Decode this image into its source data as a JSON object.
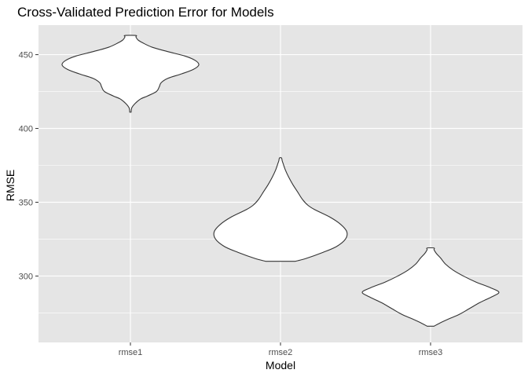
{
  "chart_data": {
    "type": "violin",
    "title": "Cross-Validated Prediction Error for Models",
    "xlabel": "Model",
    "ylabel": "RMSE",
    "categories": [
      "rmse1",
      "rmse2",
      "rmse3"
    ],
    "ylim": [
      255,
      470
    ],
    "yticks": [
      300,
      350,
      400,
      450
    ],
    "grid": true,
    "colors": {
      "panel": "#e5e5e5",
      "grid": "#ffffff",
      "violin_fill": "#ffffff",
      "violin_stroke": "#333333"
    },
    "violins": [
      {
        "category": "rmse1",
        "min": 411,
        "max": 463,
        "density": [
          [
            411,
            0.01
          ],
          [
            414,
            0.02
          ],
          [
            417,
            0.07
          ],
          [
            420,
            0.15
          ],
          [
            422,
            0.25
          ],
          [
            425,
            0.38
          ],
          [
            428,
            0.42
          ],
          [
            431,
            0.45
          ],
          [
            434,
            0.55
          ],
          [
            437,
            0.75
          ],
          [
            440,
            0.92
          ],
          [
            443,
            1.0
          ],
          [
            446,
            0.95
          ],
          [
            449,
            0.8
          ],
          [
            452,
            0.55
          ],
          [
            455,
            0.32
          ],
          [
            458,
            0.18
          ],
          [
            460,
            0.11
          ],
          [
            462,
            0.08
          ],
          [
            463,
            0.08
          ]
        ]
      },
      {
        "category": "rmse2",
        "min": 310,
        "max": 380,
        "density": [
          [
            310,
            0.22
          ],
          [
            312,
            0.38
          ],
          [
            316,
            0.62
          ],
          [
            320,
            0.82
          ],
          [
            325,
            0.95
          ],
          [
            330,
            0.97
          ],
          [
            335,
            0.88
          ],
          [
            340,
            0.72
          ],
          [
            345,
            0.5
          ],
          [
            348,
            0.4
          ],
          [
            352,
            0.32
          ],
          [
            357,
            0.25
          ],
          [
            362,
            0.18
          ],
          [
            367,
            0.12
          ],
          [
            372,
            0.07
          ],
          [
            376,
            0.04
          ],
          [
            378,
            0.025
          ],
          [
            380,
            0.015
          ]
        ]
      },
      {
        "category": "rmse3",
        "min": 266,
        "max": 319,
        "density": [
          [
            266,
            0.05
          ],
          [
            268,
            0.13
          ],
          [
            271,
            0.27
          ],
          [
            274,
            0.42
          ],
          [
            278,
            0.57
          ],
          [
            282,
            0.72
          ],
          [
            286,
            0.9
          ],
          [
            289,
            1.0
          ],
          [
            292,
            0.88
          ],
          [
            296,
            0.66
          ],
          [
            300,
            0.48
          ],
          [
            304,
            0.33
          ],
          [
            308,
            0.22
          ],
          [
            312,
            0.15
          ],
          [
            315,
            0.09
          ],
          [
            317,
            0.06
          ],
          [
            318,
            0.05
          ],
          [
            319,
            0.05
          ]
        ]
      }
    ]
  }
}
